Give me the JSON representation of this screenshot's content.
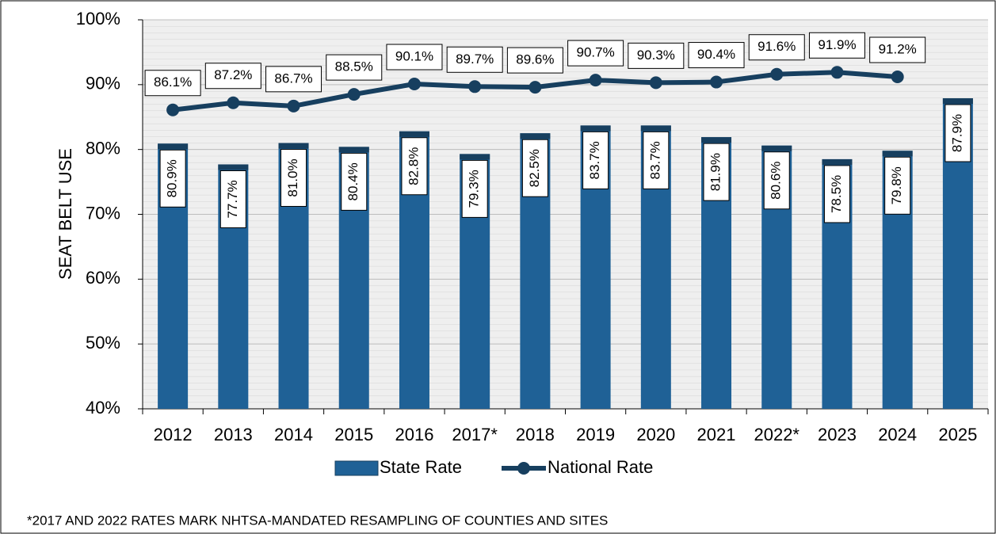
{
  "chart_data": {
    "type": "bar-line",
    "y_label": "SEAT BELT USE",
    "footnote": "*2017 AND 2022 RATES MARK NHTSA-MANDATED RESAMPLING OF COUNTIES AND SITES",
    "categories": [
      "2012",
      "2013",
      "2014",
      "2015",
      "2016",
      "2017*",
      "2018",
      "2019",
      "2020",
      "2021",
      "2022*",
      "2023",
      "2024",
      "2025"
    ],
    "series": [
      {
        "name": "State Rate",
        "type": "bar",
        "color": "#1f6196",
        "values": [
          80.9,
          77.7,
          81.0,
          80.4,
          82.8,
          79.3,
          82.5,
          83.7,
          83.7,
          81.9,
          80.6,
          78.5,
          79.8,
          87.9
        ],
        "value_labels": [
          "80.9%",
          "77.7%",
          "81.0%",
          "80.4%",
          "82.8%",
          "79.3%",
          "82.5%",
          "83.7%",
          "83.7%",
          "81.9%",
          "80.6%",
          "78.5%",
          "79.8%",
          "87.9%"
        ]
      },
      {
        "name": "National Rate",
        "type": "line",
        "color": "#173f5f",
        "values": [
          86.1,
          87.2,
          86.7,
          88.5,
          90.1,
          89.7,
          89.6,
          90.7,
          90.3,
          90.4,
          91.6,
          91.9,
          91.2,
          null
        ],
        "value_labels": [
          "86.1%",
          "87.2%",
          "86.7%",
          "88.5%",
          "90.1%",
          "89.7%",
          "89.6%",
          "90.7%",
          "90.3%",
          "90.4%",
          "91.6%",
          "91.9%",
          "91.2%",
          null
        ]
      }
    ],
    "ylim": [
      40,
      100
    ],
    "yticks": [
      {
        "value": 40,
        "label": "40%"
      },
      {
        "value": 50,
        "label": "50%"
      },
      {
        "value": 60,
        "label": "60%"
      },
      {
        "value": 70,
        "label": "70%"
      },
      {
        "value": 80,
        "label": "80%"
      },
      {
        "value": 90,
        "label": "90%"
      },
      {
        "value": 100,
        "label": "100%"
      }
    ],
    "grid": true,
    "legend": "bottom"
  }
}
